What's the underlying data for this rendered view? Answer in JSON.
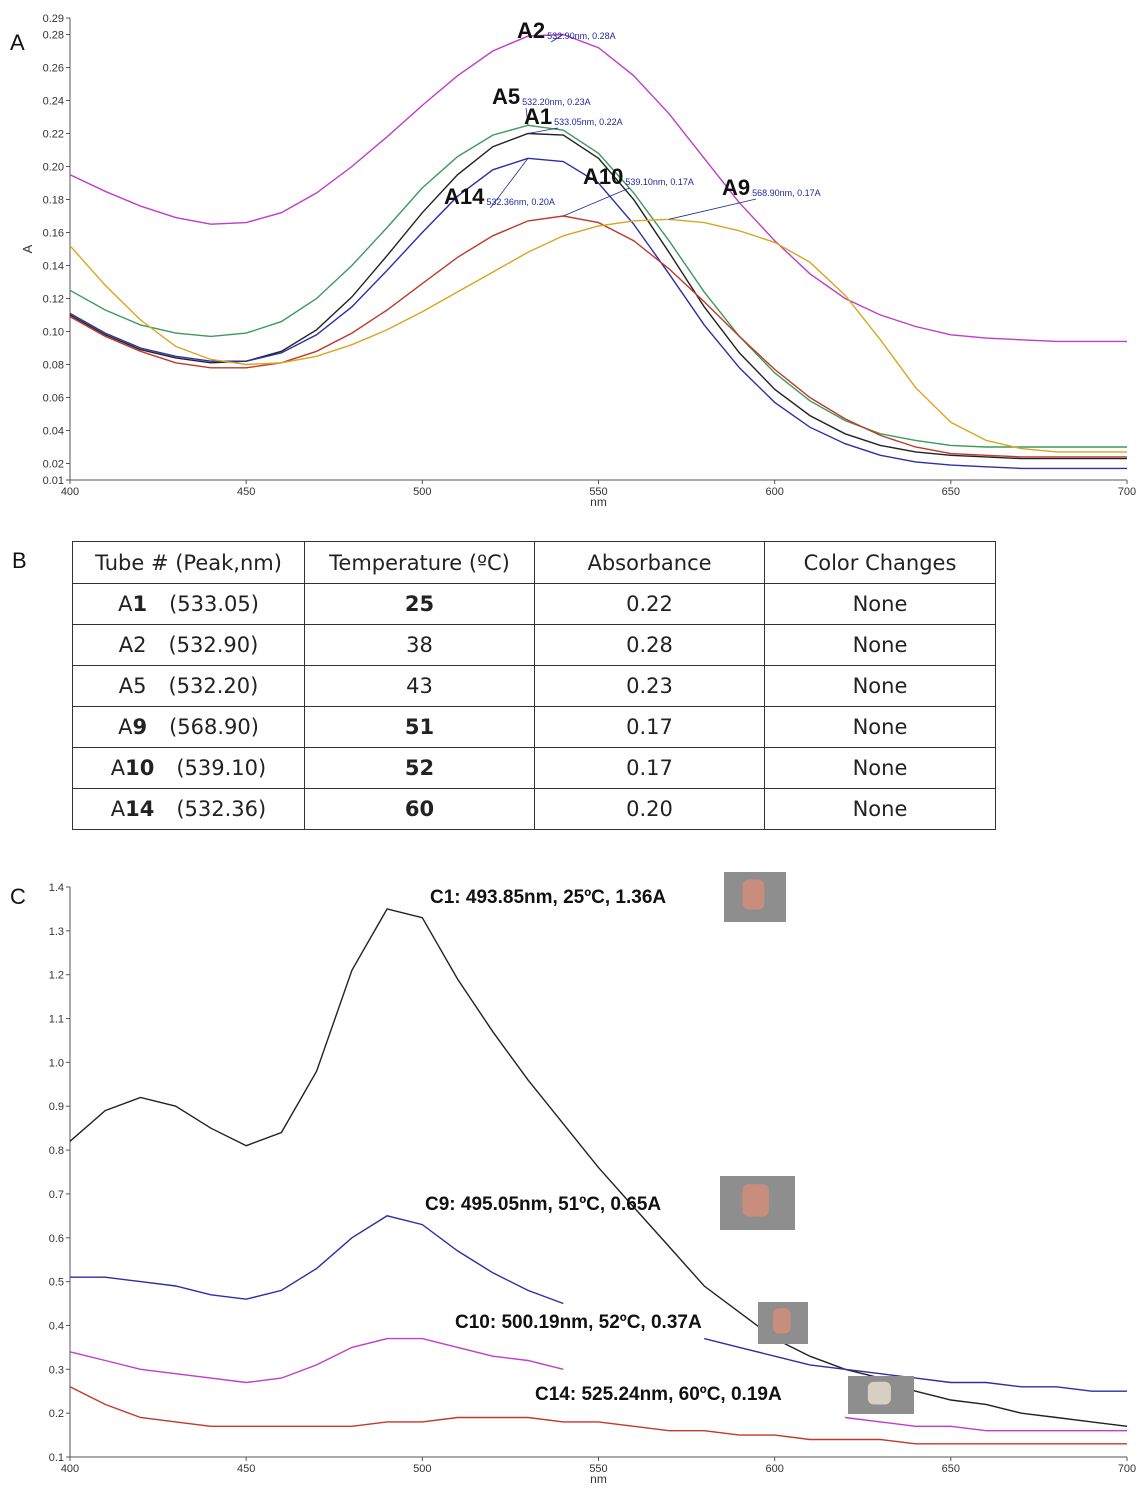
{
  "panels": [
    "A",
    "B",
    "C"
  ],
  "chart_data": [
    {
      "type": "line",
      "xlabel": "nm",
      "ylabel": "A",
      "x": [
        400,
        410,
        420,
        430,
        440,
        450,
        460,
        470,
        480,
        490,
        500,
        510,
        520,
        530,
        540,
        550,
        560,
        570,
        580,
        590,
        600,
        610,
        620,
        630,
        640,
        650,
        660,
        670,
        680,
        690,
        700
      ],
      "xlim": [
        400,
        700
      ],
      "xticks": [
        400,
        450,
        500,
        550,
        600,
        650,
        700
      ],
      "ylim": [
        0.01,
        0.29
      ],
      "yticks": [
        0.01,
        0.02,
        0.04,
        0.06,
        0.08,
        {
          "value": 0.1,
          "label": "0.10"
        },
        0.12,
        0.14,
        0.16,
        0.18,
        {
          "value": 0.2,
          "label": "0.20"
        },
        0.22,
        0.24,
        0.26,
        0.28,
        0.29
      ],
      "series": [
        {
          "name": "A2",
          "peak_label": "532.90nm, 0.28A",
          "color": "#c13cc8",
          "values": [
            0.195,
            0.185,
            0.176,
            0.169,
            0.165,
            0.166,
            0.172,
            0.184,
            0.2,
            0.218,
            0.237,
            0.255,
            0.27,
            0.279,
            0.28,
            0.272,
            0.255,
            0.232,
            0.205,
            0.178,
            0.155,
            0.135,
            0.12,
            0.11,
            0.103,
            0.098,
            0.096,
            0.095,
            0.094,
            0.094,
            0.094
          ]
        },
        {
          "name": "A5",
          "peak_label": "532.20nm, 0.23A",
          "color": "#3c9a5a",
          "values": [
            0.125,
            0.113,
            0.104,
            0.099,
            0.097,
            0.099,
            0.106,
            0.12,
            0.14,
            0.163,
            0.187,
            0.206,
            0.219,
            0.225,
            0.222,
            0.208,
            0.184,
            0.155,
            0.124,
            0.097,
            0.075,
            0.058,
            0.046,
            0.038,
            0.034,
            0.031,
            0.03,
            0.03,
            0.03,
            0.03,
            0.03
          ]
        },
        {
          "name": "A1",
          "peak_label": "533.05nm, 0.22A",
          "color": "#222222",
          "values": [
            0.11,
            0.098,
            0.089,
            0.084,
            0.081,
            0.082,
            0.088,
            0.101,
            0.121,
            0.146,
            0.172,
            0.195,
            0.212,
            0.22,
            0.219,
            0.205,
            0.18,
            0.148,
            0.115,
            0.087,
            0.065,
            0.049,
            0.038,
            0.031,
            0.027,
            0.025,
            0.024,
            0.023,
            0.023,
            0.023,
            0.023
          ]
        },
        {
          "name": "A14",
          "peak_label": "532.36nm, 0.20A",
          "color": "#2b2fa8",
          "values": [
            0.111,
            0.099,
            0.09,
            0.085,
            0.082,
            0.082,
            0.087,
            0.098,
            0.115,
            0.137,
            0.16,
            0.182,
            0.198,
            0.205,
            0.203,
            0.19,
            0.165,
            0.135,
            0.104,
            0.078,
            0.057,
            0.042,
            0.032,
            0.025,
            0.021,
            0.019,
            0.018,
            0.017,
            0.017,
            0.017,
            0.017
          ]
        },
        {
          "name": "A10",
          "peak_label": "539.10nm, 0.17A",
          "color": "#c0392b",
          "values": [
            0.109,
            0.097,
            0.088,
            0.081,
            0.078,
            0.078,
            0.081,
            0.088,
            0.099,
            0.113,
            0.129,
            0.145,
            0.158,
            0.167,
            0.17,
            0.166,
            0.155,
            0.138,
            0.118,
            0.097,
            0.077,
            0.06,
            0.047,
            0.037,
            0.03,
            0.026,
            0.025,
            0.024,
            0.024,
            0.024,
            0.024
          ]
        },
        {
          "name": "A9",
          "peak_label": "568.90nm, 0.17A",
          "color": "#d9a520",
          "values": [
            0.152,
            0.128,
            0.107,
            0.091,
            0.083,
            0.08,
            0.081,
            0.085,
            0.092,
            0.101,
            0.112,
            0.124,
            0.136,
            0.148,
            0.158,
            0.164,
            0.167,
            0.168,
            0.166,
            0.161,
            0.154,
            0.142,
            0.122,
            0.095,
            0.066,
            0.045,
            0.034,
            0.029,
            0.027,
            0.027,
            0.027
          ]
        }
      ]
    },
    {
      "type": "line",
      "xlabel": "nm",
      "x": [
        400,
        410,
        420,
        430,
        440,
        450,
        460,
        470,
        480,
        490,
        500,
        510,
        520,
        530,
        540,
        550,
        560,
        570,
        580,
        590,
        600,
        610,
        620,
        630,
        640,
        650,
        660,
        670,
        680,
        690,
        700
      ],
      "xlim": [
        400,
        700
      ],
      "xticks": [
        400,
        450,
        500,
        550,
        600,
        650,
        700
      ],
      "ylim": [
        0.1,
        1.4
      ],
      "yticks": [
        0.1,
        0.2,
        0.3,
        0.4,
        0.5,
        0.6,
        0.7,
        0.8,
        0.9,
        {
          "value": 1,
          "label": "1.0"
        },
        1.1,
        1.2,
        1.3,
        1.4
      ],
      "series": [
        {
          "label": "C1: 493.85nm, 25ºC, 1.36A",
          "color": "#222222",
          "values": [
            0.82,
            0.89,
            0.92,
            0.9,
            0.85,
            0.81,
            0.84,
            0.98,
            1.21,
            1.35,
            1.33,
            1.19,
            1.07,
            0.96,
            0.86,
            0.76,
            0.67,
            0.58,
            0.49,
            0.43,
            0.37,
            0.33,
            0.3,
            0.28,
            0.25,
            0.23,
            0.22,
            0.2,
            0.19,
            0.18,
            0.17
          ]
        },
        {
          "label": "C9: 495.05nm, 51ºC, 0.65A",
          "color": "#2b2fa8",
          "values": [
            0.51,
            0.51,
            0.5,
            0.49,
            0.47,
            0.46,
            0.48,
            0.53,
            0.6,
            0.65,
            0.63,
            0.57,
            0.52,
            0.48,
            0.45,
            null,
            null,
            null,
            0.37,
            0.35,
            0.33,
            0.31,
            0.3,
            0.29,
            0.28,
            0.27,
            0.27,
            0.26,
            0.26,
            0.25,
            0.25
          ]
        },
        {
          "label": "C10: 500.19nm, 52ºC, 0.37A",
          "color": "#c13cc8",
          "values": [
            0.34,
            0.32,
            0.3,
            0.29,
            0.28,
            0.27,
            0.28,
            0.31,
            0.35,
            0.37,
            0.37,
            0.35,
            0.33,
            0.32,
            0.3,
            null,
            null,
            null,
            null,
            null,
            null,
            null,
            0.19,
            0.18,
            0.17,
            0.17,
            0.16,
            0.16,
            0.16,
            0.16,
            0.16
          ]
        },
        {
          "label": "C14: 525.24nm, 60ºC, 0.19A",
          "color": "#c0392b",
          "values": [
            0.26,
            0.22,
            0.19,
            0.18,
            0.17,
            0.17,
            0.17,
            0.17,
            0.17,
            0.18,
            0.18,
            0.19,
            0.19,
            0.19,
            0.18,
            0.18,
            0.17,
            0.16,
            0.16,
            0.15,
            0.15,
            0.14,
            0.14,
            0.14,
            0.13,
            0.13,
            0.13,
            0.13,
            0.13,
            0.13,
            0.13
          ]
        }
      ]
    }
  ],
  "table": {
    "header": [
      "Tube # (Peak,nm)",
      "Temperature (ºC)",
      "Absorbance",
      "Color Changes"
    ],
    "rows": [
      {
        "tube_prefix": "A",
        "tube_number": "1",
        "peak": "(533.05)",
        "temperature": "25",
        "absorbance": "0.22",
        "color_change": "None",
        "bold": true
      },
      {
        "tube_prefix": "A",
        "tube_number": "2",
        "peak": "(532.90)",
        "temperature": "38",
        "absorbance": "0.28",
        "color_change": "None",
        "bold": false
      },
      {
        "tube_prefix": "A",
        "tube_number": "5",
        "peak": "(532.20)",
        "temperature": "43",
        "absorbance": "0.23",
        "color_change": "None",
        "bold": false
      },
      {
        "tube_prefix": "A",
        "tube_number": "9",
        "peak": "(568.90)",
        "temperature": "51",
        "absorbance": "0.17",
        "color_change": "None",
        "bold": true
      },
      {
        "tube_prefix": "A",
        "tube_number": "10",
        "peak": "(539.10)",
        "temperature": "52",
        "absorbance": "0.17",
        "color_change": "None",
        "bold": true
      },
      {
        "tube_prefix": "A",
        "tube_number": "14",
        "peak": "(532.36)",
        "temperature": "60",
        "absorbance": "0.20",
        "color_change": "None",
        "bold": true
      }
    ]
  }
}
